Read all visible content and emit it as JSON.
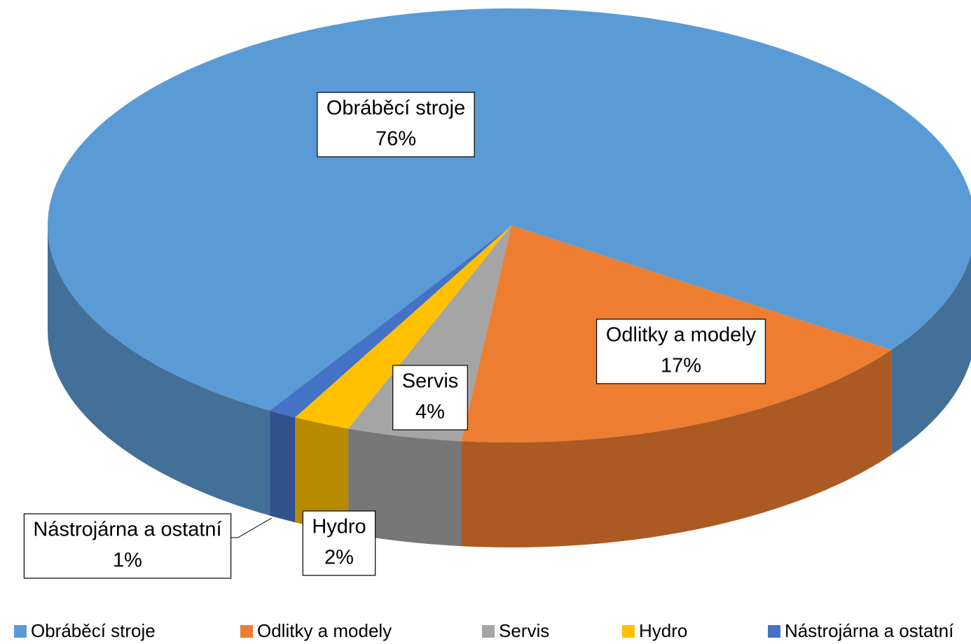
{
  "chart_data": {
    "type": "pie3d",
    "categories": [
      "Obráběcí stroje",
      "Odlitky a modely",
      "Servis",
      "Hydro",
      "Nástrojárna a ostatní"
    ],
    "values": [
      76,
      17,
      4,
      2,
      1
    ],
    "value_labels": [
      "76%",
      "17%",
      "4%",
      "2%",
      "1%"
    ],
    "colors": [
      "#5b9bd5",
      "#ed7d31",
      "#a5a5a5",
      "#ffc000",
      "#4472c4"
    ],
    "legend": "bottom"
  }
}
